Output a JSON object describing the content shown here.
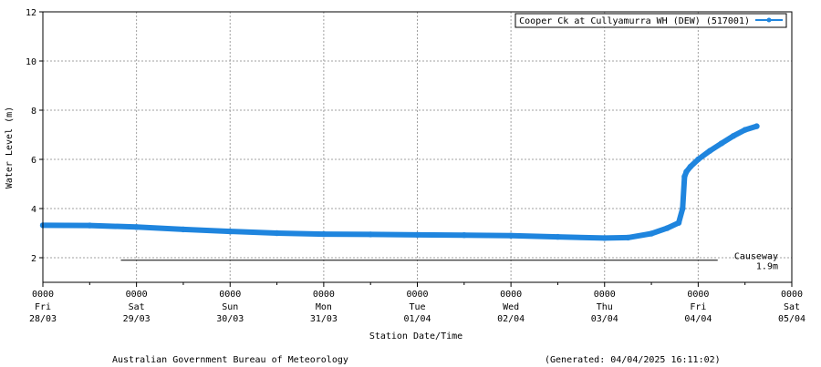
{
  "chart_data": {
    "type": "line",
    "title": "",
    "xlabel": "Station Date/Time",
    "ylabel": "Water Level (m)",
    "xlim": [
      "2025-03-28T00:00",
      "2025-04-05T00:00"
    ],
    "ylim": [
      1,
      12
    ],
    "yticks": [
      2,
      4,
      6,
      8,
      10,
      12
    ],
    "xticks": [
      {
        "value": "2025-03-28T00:00",
        "time": "0000",
        "day": "Fri",
        "date": "28/03"
      },
      {
        "value": "2025-03-29T00:00",
        "time": "0000",
        "day": "Sat",
        "date": "29/03"
      },
      {
        "value": "2025-03-30T00:00",
        "time": "0000",
        "day": "Sun",
        "date": "30/03"
      },
      {
        "value": "2025-03-31T00:00",
        "time": "0000",
        "day": "Mon",
        "date": "31/03"
      },
      {
        "value": "2025-04-01T00:00",
        "time": "0000",
        "day": "Tue",
        "date": "01/04"
      },
      {
        "value": "2025-04-02T00:00",
        "time": "0000",
        "day": "Wed",
        "date": "02/04"
      },
      {
        "value": "2025-04-03T00:00",
        "time": "0000",
        "day": "Thu",
        "date": "03/04"
      },
      {
        "value": "2025-04-04T00:00",
        "time": "0000",
        "day": "Fri",
        "date": "04/04"
      },
      {
        "value": "2025-04-05T00:00",
        "time": "0000",
        "day": "Sat",
        "date": "05/04"
      }
    ],
    "grid": true,
    "legend": "top-right",
    "series": [
      {
        "name": "Cooper Ck at Cullyamurra WH (DEW) (517001)",
        "color": "#1f85de",
        "x": [
          "2025-03-28T00:00",
          "2025-03-28T12:00",
          "2025-03-29T00:00",
          "2025-03-29T12:00",
          "2025-03-30T00:00",
          "2025-03-30T12:00",
          "2025-03-31T00:00",
          "2025-03-31T12:00",
          "2025-04-01T00:00",
          "2025-04-01T12:00",
          "2025-04-02T00:00",
          "2025-04-02T12:00",
          "2025-04-03T00:00",
          "2025-04-03T06:00",
          "2025-04-03T12:00",
          "2025-04-03T16:00",
          "2025-04-03T19:00",
          "2025-04-03T20:00",
          "2025-04-03T20:30",
          "2025-04-03T21:00",
          "2025-04-03T22:00",
          "2025-04-04T00:00",
          "2025-04-04T03:00",
          "2025-04-04T06:00",
          "2025-04-04T09:00",
          "2025-04-04T12:00",
          "2025-04-04T15:00"
        ],
        "y": [
          3.32,
          3.31,
          3.25,
          3.15,
          3.07,
          3.0,
          2.96,
          2.95,
          2.93,
          2.92,
          2.9,
          2.85,
          2.8,
          2.82,
          2.98,
          3.2,
          3.42,
          4.0,
          5.3,
          5.5,
          5.7,
          6.0,
          6.35,
          6.65,
          6.95,
          7.2,
          7.35
        ]
      }
    ],
    "annotations": [
      {
        "label": "Causeway",
        "sublabel": "1.9m",
        "y": 1.9,
        "x_start": "2025-03-28T20:00",
        "x_end": "2025-04-04T05:00"
      }
    ]
  },
  "footer": {
    "agency": "Australian Government Bureau of Meteorology",
    "generated": "(Generated: 04/04/2025 16:11:02)"
  }
}
